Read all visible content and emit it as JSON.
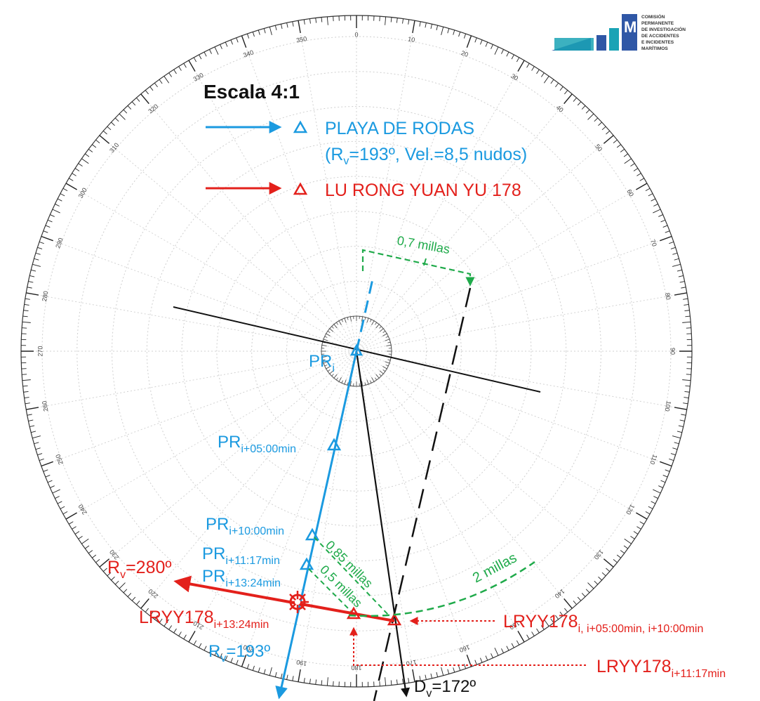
{
  "title": "Escala 4:1",
  "logo": {
    "acronym": "CIAIM",
    "text_lines": [
      "COMISIÓN",
      "PERMANENTE",
      "DE INVESTIGACIÓN",
      "DE ACCIDENTES",
      "E INCIDENTES",
      "MARÍTIMOS"
    ]
  },
  "legend": {
    "vessel1_name": "PLAYA DE RODAS",
    "vessel1_details": "(Rv=193º, Vel.=8,5 nudos)",
    "vessel1_details_pre": "(R",
    "vessel1_details_sub": "v",
    "vessel1_details_post": "=193º, Vel.=8,5 nudos)",
    "vessel2_name": "LU RONG YUAN YU 178"
  },
  "compass": {
    "bearing_labels": [
      "0",
      "10",
      "20",
      "30",
      "40",
      "50",
      "60",
      "70",
      "80",
      "90",
      "100",
      "110",
      "120",
      "130",
      "140",
      "150",
      "160",
      "170",
      "180",
      "190",
      "200",
      "210",
      "220",
      "230",
      "240",
      "250",
      "260",
      "270",
      "280",
      "290",
      "300",
      "310",
      "320",
      "330",
      "340",
      "350"
    ]
  },
  "labels": {
    "pr_i": {
      "main": "PR",
      "sub": "i"
    },
    "pr_5": {
      "main": "PR",
      "sub": "i+05:00min"
    },
    "pr_10": {
      "main": "PR",
      "sub": "i+10:00min"
    },
    "pr_11": {
      "main": "PR",
      "sub": "i+11:17min"
    },
    "pr_13": {
      "main": "PR",
      "sub": "i+13:24min"
    },
    "rv_280": {
      "pre": "R",
      "sub": "v",
      "post": "=280º"
    },
    "rv_193": {
      "pre": "R",
      "sub": "v",
      "post": "=193º"
    },
    "dv_172": {
      "pre": "D",
      "sub": "v",
      "post": "=172º"
    },
    "lryy_13": {
      "main": "LRYY178",
      "sub": "i+13:24min"
    },
    "lryy_i": {
      "main": "LRYY178",
      "sub": "i, i+05:00min, i+10:00min"
    },
    "lryy_11": {
      "main": "LRYY178",
      "sub": "i+11:17min"
    },
    "dist_07": "0,7 millas",
    "dist_085": "0,85 millas",
    "dist_05": "0,5 millas",
    "dist_2": "2 millas"
  },
  "colors": {
    "blue": "#1b9ae0",
    "red": "#e3201b",
    "green": "#1faa4a",
    "black": "#111111",
    "grid": "#c8c8c8",
    "logo_blue": "#2f57a6",
    "logo_teal": "#1aa3b5"
  }
}
